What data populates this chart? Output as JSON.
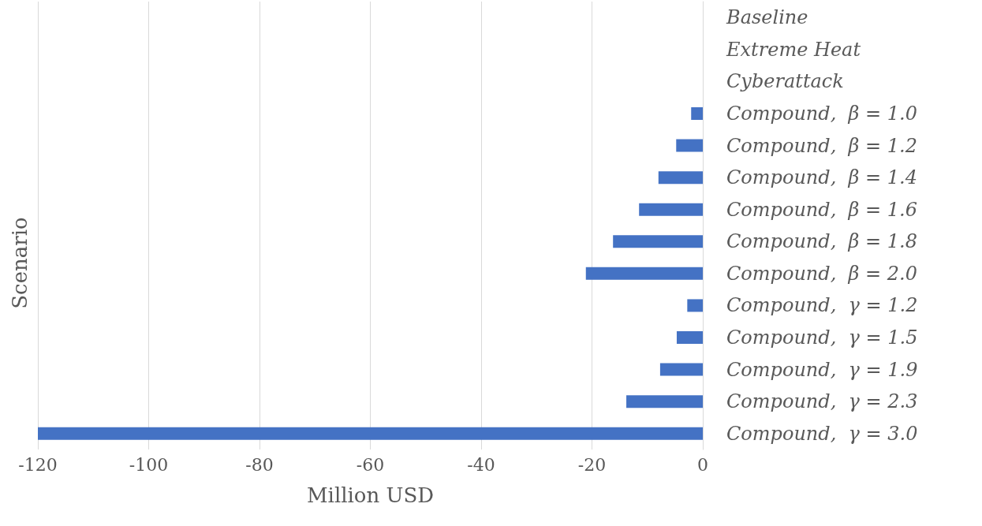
{
  "chart_data": {
    "type": "bar",
    "orientation": "horizontal",
    "xlabel": "Million USD",
    "ylabel": "Scenario",
    "categories": [
      "Baseline",
      "Extreme Heat",
      "Cyberattack",
      "Compound,  β = 1.0",
      "Compound,  β = 1.2",
      "Compound,  β = 1.4",
      "Compound,  β = 1.6",
      "Compound,  β = 1.8",
      "Compound,  β = 2.0",
      "Compound,  γ = 1.2",
      "Compound,  γ = 1.5",
      "Compound,  γ = 1.9",
      "Compound,  γ = 2.3",
      "Compound,  γ = 3.0"
    ],
    "values": [
      0,
      0,
      0,
      -2.1,
      -4.8,
      -8,
      -11.5,
      -16.2,
      -21.1,
      -2.8,
      -4.7,
      -7.7,
      -13.8,
      -120
    ],
    "color": "#4472c4",
    "xlim": [
      -120,
      0
    ],
    "xticks": [
      -120,
      -100,
      -80,
      -60,
      -40,
      -20,
      0
    ],
    "grid": "x"
  }
}
